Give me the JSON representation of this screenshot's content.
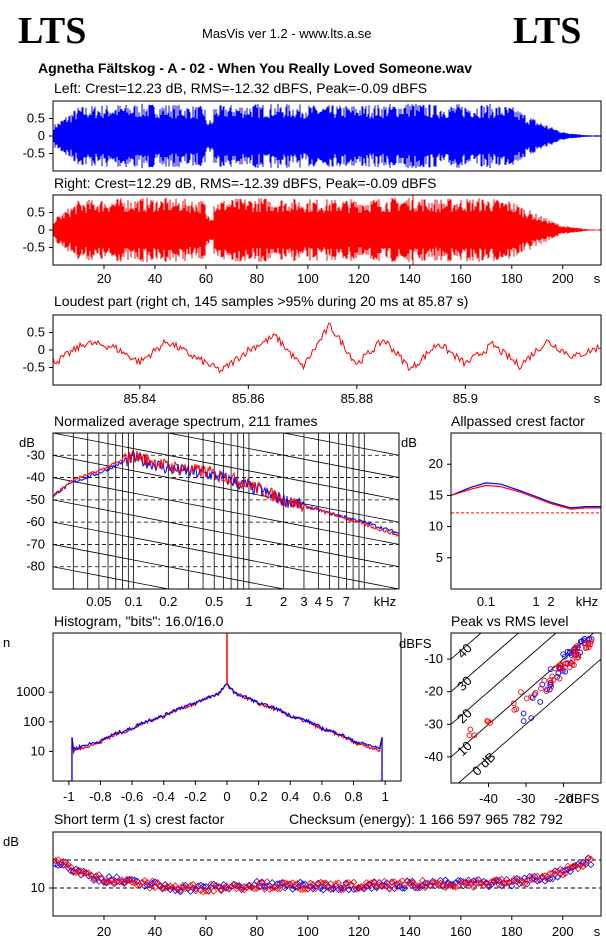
{
  "header": {
    "logo_left": "LTS",
    "logo_right": "LTS",
    "app": "MasVis ver 1.2 - www.lts.a.se",
    "file": "Agnetha Fältskog - A - 02 - When You Really Loved Someone.wav"
  },
  "colors": {
    "left": "#0000ff",
    "right": "#ff0000",
    "guide": "#000000"
  },
  "chart_data": [
    {
      "id": "left-waveform",
      "type": "area",
      "title": "Left: Crest=12.23 dB, RMS=-12.32 dBFS, Peak=-0.09 dBFS",
      "series": [
        {
          "name": "Left",
          "color": "#0000ff"
        }
      ],
      "x": [
        0,
        10,
        20,
        30,
        40,
        50,
        60,
        70,
        80,
        90,
        100,
        110,
        120,
        130,
        140,
        150,
        160,
        170,
        180,
        190,
        200,
        210
      ],
      "envelope": [
        0.3,
        0.85,
        0.9,
        0.92,
        0.93,
        0.9,
        0.85,
        0.9,
        0.93,
        0.92,
        0.9,
        0.88,
        0.9,
        0.92,
        0.97,
        0.9,
        0.92,
        0.93,
        0.85,
        0.45,
        0.12,
        0.02
      ],
      "yticks": [
        "0.5",
        "0",
        "-0.5"
      ],
      "ylim": [
        -1,
        1
      ],
      "xlim": [
        0,
        215
      ]
    },
    {
      "id": "right-waveform",
      "type": "area",
      "title": "Right: Crest=12.29 dB, RMS=-12.39 dBFS, Peak=-0.09 dBFS",
      "series": [
        {
          "name": "Right",
          "color": "#ff0000"
        }
      ],
      "x": [
        0,
        10,
        20,
        30,
        40,
        50,
        60,
        70,
        80,
        90,
        100,
        110,
        120,
        130,
        140,
        150,
        160,
        170,
        180,
        190,
        200,
        210
      ],
      "envelope": [
        0.3,
        0.85,
        0.9,
        0.92,
        0.93,
        0.9,
        0.85,
        0.9,
        0.93,
        0.92,
        0.9,
        0.88,
        0.9,
        0.92,
        0.97,
        0.9,
        0.92,
        0.93,
        0.85,
        0.45,
        0.12,
        0.02
      ],
      "xticks": [
        "20",
        "40",
        "60",
        "80",
        "100",
        "120",
        "140",
        "160",
        "180",
        "200"
      ],
      "xunit": "s",
      "yticks": [
        "0.5",
        "0",
        "-0.5"
      ],
      "ylim": [
        -1,
        1
      ],
      "xlim": [
        0,
        215
      ]
    },
    {
      "id": "loudest-part",
      "type": "line",
      "title": "Loudest part (right ch, 145 samples >95% during 20 ms at 85.87 s)",
      "series": [
        {
          "name": "Right",
          "color": "#ff0000"
        }
      ],
      "x": [
        85.825,
        85.83,
        85.835,
        85.84,
        85.845,
        85.85,
        85.855,
        85.86,
        85.865,
        85.87,
        85.875,
        85.88,
        85.885,
        85.89,
        85.895,
        85.9,
        85.905,
        85.91,
        85.915,
        85.92,
        85.925
      ],
      "y": [
        -0.3,
        0.2,
        0.1,
        -0.35,
        0.25,
        -0.2,
        -0.6,
        0.0,
        0.4,
        -0.5,
        0.7,
        -0.4,
        0.3,
        -0.55,
        0.2,
        -0.4,
        0.15,
        -0.45,
        0.25,
        -0.2,
        0.1
      ],
      "xticks": [
        "85.84",
        "85.86",
        "85.88",
        "85.9"
      ],
      "xunit": "s",
      "yticks": [
        "0.5",
        "0",
        "-0.5"
      ],
      "ylim": [
        -1,
        1
      ],
      "xlim": [
        85.824,
        85.925
      ]
    },
    {
      "id": "average-spectrum",
      "type": "line",
      "title": "Normalized average spectrum, 211 frames",
      "ylabel": "dB",
      "xunit": "kHz",
      "xscale": "log",
      "series": [
        {
          "name": "Left",
          "color": "#0000ff",
          "x": [
            0.02,
            0.03,
            0.05,
            0.1,
            0.2,
            0.5,
            1,
            2,
            5,
            10,
            20
          ],
          "y": [
            -48,
            -42,
            -38,
            -31,
            -36,
            -39,
            -44,
            -50,
            -56,
            -60,
            -65
          ]
        },
        {
          "name": "Right",
          "color": "#ff0000",
          "x": [
            0.02,
            0.03,
            0.05,
            0.1,
            0.2,
            0.5,
            1,
            2,
            5,
            10,
            20
          ],
          "y": [
            -48,
            -41,
            -37,
            -30,
            -35,
            -38,
            -43,
            -50,
            -56,
            -61,
            -66
          ]
        }
      ],
      "xticks": [
        "0.05",
        "0.1",
        "0.2",
        "0.5",
        "1",
        "2",
        "3",
        "4",
        "5",
        "7"
      ],
      "yticks": [
        "-30",
        "-40",
        "-50",
        "-60",
        "-70",
        "-80"
      ],
      "ylim": [
        -90,
        -20
      ],
      "xlim": [
        0.02,
        20
      ]
    },
    {
      "id": "allpassed-crest",
      "type": "line",
      "title": "Allpassed crest factor",
      "ylabel": "dB",
      "xunit": "kHz",
      "xscale": "log",
      "series": [
        {
          "name": "Left",
          "color": "#0000ff",
          "x": [
            0.02,
            0.05,
            0.1,
            0.2,
            0.5,
            1,
            2,
            5,
            10,
            20
          ],
          "y": [
            15,
            16.3,
            17,
            16.8,
            15.7,
            14.8,
            13.9,
            13,
            13.2,
            13.2
          ]
        },
        {
          "name": "Right",
          "color": "#ff0000",
          "x": [
            0.02,
            0.05,
            0.1,
            0.2,
            0.5,
            1,
            2,
            5,
            10,
            20
          ],
          "y": [
            15,
            16,
            16.6,
            16.4,
            15.5,
            14.6,
            13.7,
            12.8,
            13,
            13
          ]
        }
      ],
      "reference": 12.2,
      "xticks": [
        "0.1",
        "1",
        "2"
      ],
      "yticks": [
        "20",
        "15",
        "10",
        "5"
      ],
      "ylim": [
        0,
        25
      ],
      "xlim": [
        0.02,
        20
      ]
    },
    {
      "id": "histogram",
      "type": "line",
      "title": "Histogram, \"bits\": 16.0/16.0",
      "ylabel": "n",
      "yscale": "log",
      "series": [
        {
          "name": "Left",
          "color": "#0000ff",
          "x": [
            -0.97,
            -0.8,
            -0.6,
            -0.4,
            -0.2,
            -0.05,
            0,
            0.05,
            0.2,
            0.4,
            0.6,
            0.8,
            0.97
          ],
          "y": [
            12,
            22,
            60,
            160,
            420,
            900,
            1800,
            900,
            420,
            160,
            60,
            22,
            12
          ]
        },
        {
          "name": "Right",
          "color": "#ff0000",
          "x": [
            -0.97,
            -0.8,
            -0.6,
            -0.4,
            -0.2,
            -0.05,
            0,
            0.05,
            0.2,
            0.4,
            0.6,
            0.8,
            0.97
          ],
          "y": [
            10,
            20,
            55,
            150,
            400,
            880,
            1800,
            880,
            400,
            150,
            55,
            20,
            10
          ]
        }
      ],
      "xticks": [
        "-1",
        "-0.8",
        "-0.6",
        "-0.4",
        "-0.2",
        "0",
        "0.2",
        "0.4",
        "0.6",
        "0.8",
        "1"
      ],
      "yticks": [
        "1000",
        "100",
        "10"
      ],
      "ylim": [
        1,
        100000
      ],
      "xlim": [
        -1.1,
        1.1
      ]
    },
    {
      "id": "peak-vs-rms",
      "type": "scatter",
      "title": "Peak vs RMS level",
      "ylabel": "dBFS",
      "xunit": "dBFS",
      "series": [
        {
          "name": "Left",
          "color": "#0000ff",
          "x": [
            -30,
            -27,
            -25,
            -24,
            -22,
            -21,
            -20,
            -19,
            -18,
            -17,
            -16,
            -15,
            -14,
            -13
          ],
          "y": [
            -28,
            -22,
            -18,
            -17,
            -14,
            -13,
            -12,
            -10,
            -9,
            -8,
            -7,
            -6,
            -5,
            -4
          ]
        },
        {
          "name": "Right",
          "color": "#ff0000",
          "x": [
            -44,
            -40,
            -34,
            -30,
            -26,
            -24,
            -22,
            -21,
            -20,
            -19,
            -18,
            -17,
            -16,
            -15,
            -14,
            -13
          ],
          "y": [
            -32,
            -30,
            -25,
            -21,
            -19,
            -17,
            -15,
            -14,
            -13,
            -12,
            -11,
            -9,
            -8,
            -7,
            -6,
            -5
          ]
        }
      ],
      "diagonal_labels": [
        "40",
        "30",
        "20",
        "10",
        "0 dB"
      ],
      "xticks": [
        "-40",
        "-30",
        "-20"
      ],
      "yticks": [
        "-10",
        "-20",
        "-30",
        "-40"
      ],
      "xlim": [
        -50,
        -10
      ],
      "ylim": [
        -48,
        -2
      ]
    },
    {
      "id": "short-term-crest",
      "type": "scatter",
      "title": "Short term (1 s) crest factor",
      "note": "Checksum (energy):  1 166 597 965 782 792",
      "ylabel": "dB",
      "xunit": "s",
      "series": [
        {
          "name": "Left",
          "color": "#0000ff"
        },
        {
          "name": "Right",
          "color": "#ff0000"
        }
      ],
      "profile_x": [
        0,
        5,
        15,
        30,
        50,
        60,
        80,
        100,
        120,
        140,
        160,
        180,
        195,
        205,
        212
      ],
      "profile_y": [
        15,
        14,
        12,
        11,
        10,
        10,
        10.5,
        10.3,
        10.4,
        10.6,
        10.8,
        11,
        12,
        14,
        15
      ],
      "reference": 10,
      "xticks": [
        "20",
        "40",
        "60",
        "80",
        "100",
        "120",
        "140",
        "160",
        "180",
        "200"
      ],
      "yticks": [
        "10"
      ],
      "xlim": [
        0,
        215
      ],
      "ylim": [
        5,
        20
      ]
    }
  ]
}
